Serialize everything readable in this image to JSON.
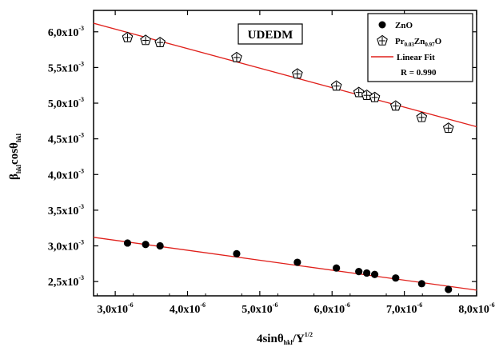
{
  "chart_data": {
    "type": "scatter",
    "title": "",
    "annotation": "UDEDM",
    "xlabel": {
      "main": "4sinθ",
      "sub": "hkl",
      "rest": "/Y",
      "sup": "1/2"
    },
    "ylabel": {
      "b": "β",
      "bsub": "hkl",
      "cos": "cosθ",
      "csub": "hkl"
    },
    "xlim": [
      2.7e-06,
      8e-06
    ],
    "ylim": [
      0.0023,
      0.0063
    ],
    "x_ticks": [
      {
        "value": 3e-06,
        "mant": "3,0x10",
        "exp": "-6"
      },
      {
        "value": 4e-06,
        "mant": "4,0x10",
        "exp": "-6"
      },
      {
        "value": 5e-06,
        "mant": "5,0x10",
        "exp": "-6"
      },
      {
        "value": 6e-06,
        "mant": "6,0x10",
        "exp": "-6"
      },
      {
        "value": 7e-06,
        "mant": "7,0x10",
        "exp": "-6"
      },
      {
        "value": 8e-06,
        "mant": "8,0x10",
        "exp": "-6"
      }
    ],
    "y_ticks": [
      {
        "value": 0.0025,
        "mant": "2,5x10",
        "exp": "-3"
      },
      {
        "value": 0.003,
        "mant": "3,0x10",
        "exp": "-3"
      },
      {
        "value": 0.0035,
        "mant": "3,5x10",
        "exp": "-3"
      },
      {
        "value": 0.004,
        "mant": "4,0x10",
        "exp": "-3"
      },
      {
        "value": 0.0045,
        "mant": "4,5x10",
        "exp": "-3"
      },
      {
        "value": 0.005,
        "mant": "5,0x10",
        "exp": "-3"
      },
      {
        "value": 0.0055,
        "mant": "5,5x10",
        "exp": "-3"
      },
      {
        "value": 0.006,
        "mant": "6,0x10",
        "exp": "-3"
      }
    ],
    "series": [
      {
        "name": "ZnO",
        "marker": "filled-circle",
        "color": "#000000",
        "x": [
          3.17e-06,
          3.42e-06,
          3.62e-06,
          4.68e-06,
          5.52e-06,
          6.06e-06,
          6.37e-06,
          6.48e-06,
          6.59e-06,
          6.88e-06,
          7.24e-06,
          7.61e-06
        ],
        "y": [
          0.00304,
          0.00302,
          0.003,
          0.00289,
          0.00277,
          0.00269,
          0.00264,
          0.00262,
          0.0026,
          0.00255,
          0.00247,
          0.00239
        ]
      },
      {
        "name_parts": [
          "Pr",
          "0.03",
          "Zn",
          "0.97",
          "O"
        ],
        "marker": "open-pentagon-cross",
        "color": "#000000",
        "x": [
          3.17e-06,
          3.42e-06,
          3.62e-06,
          4.68e-06,
          5.52e-06,
          6.06e-06,
          6.37e-06,
          6.48e-06,
          6.59e-06,
          6.88e-06,
          7.24e-06,
          7.61e-06
        ],
        "y": [
          0.00592,
          0.00588,
          0.00585,
          0.00564,
          0.00541,
          0.00524,
          0.00515,
          0.00511,
          0.00508,
          0.00496,
          0.0048,
          0.00465
        ]
      }
    ],
    "fits": [
      {
        "name": "Linear Fit",
        "color": "#e0201b",
        "x": [
          2.7e-06,
          8e-06
        ],
        "y": [
          0.00612,
          0.00467
        ]
      },
      {
        "name": "Linear Fit",
        "color": "#e0201b",
        "x": [
          2.7e-06,
          8e-06
        ],
        "y": [
          0.00312,
          0.00238
        ]
      }
    ],
    "legend": {
      "position": "top-right",
      "fit_label": "Linear Fit",
      "r_label": "R = 0.990"
    }
  }
}
